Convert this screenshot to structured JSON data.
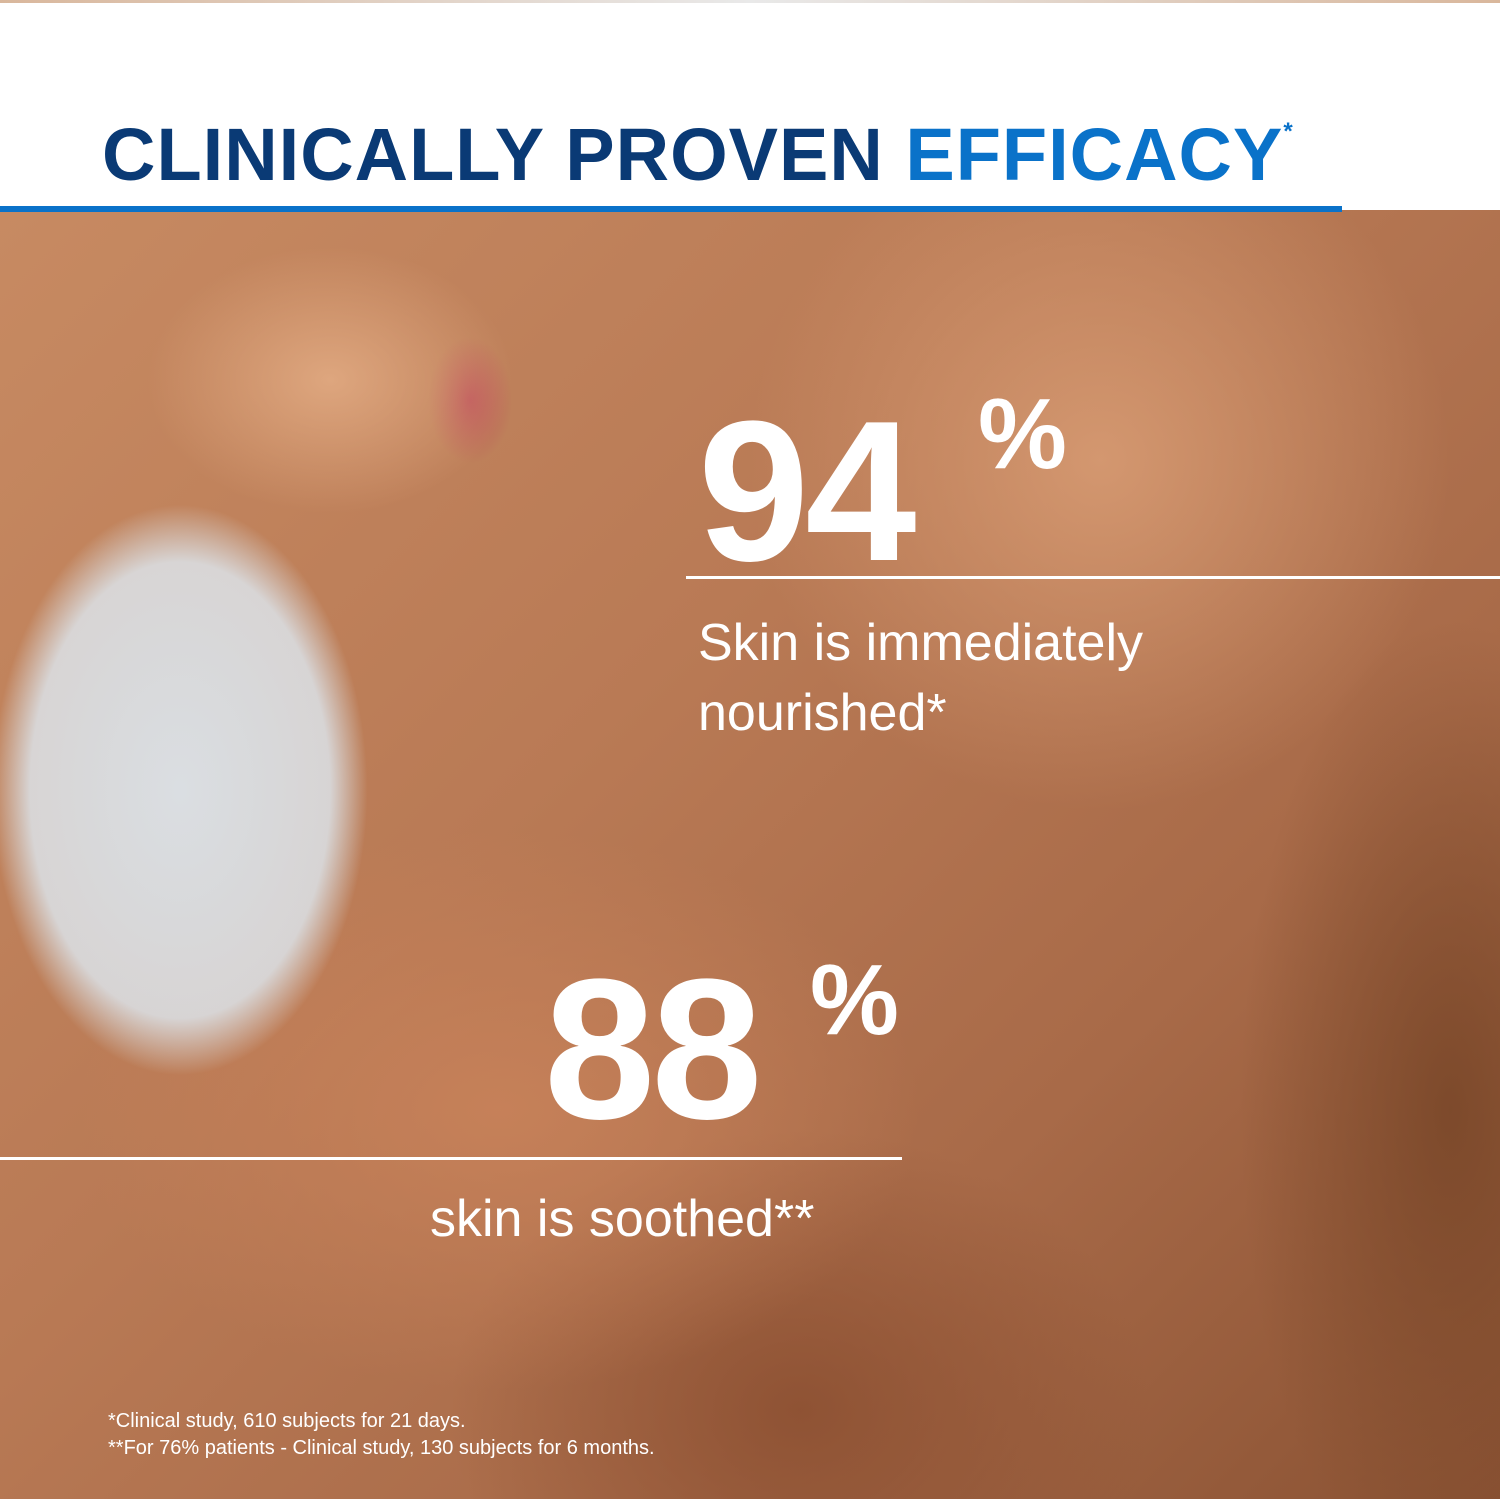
{
  "header": {
    "title_part1": "CLINICALLY PROVEN",
    "title_part2": "EFFICACY",
    "title_mark": "*"
  },
  "stats": [
    {
      "value": "94",
      "unit": "%",
      "caption_line1": "Skin is immediately",
      "caption_line2": "nourished*"
    },
    {
      "value": "88",
      "unit": "%",
      "caption_line1": "skin is soothed**"
    }
  ],
  "footnotes": [
    "*Clinical study, 610 subjects for 21 days.",
    "**For 76% patients - Clinical study, 130 subjects for 6 months."
  ],
  "colors": {
    "navy": "#0a3a75",
    "blue": "#0a72c9",
    "text": "#ffffff"
  }
}
